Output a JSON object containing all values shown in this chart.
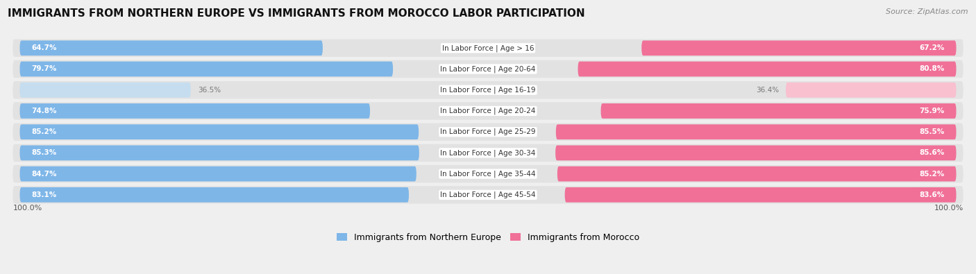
{
  "title": "IMMIGRANTS FROM NORTHERN EUROPE VS IMMIGRANTS FROM MOROCCO LABOR PARTICIPATION",
  "source": "Source: ZipAtlas.com",
  "categories": [
    "In Labor Force | Age > 16",
    "In Labor Force | Age 20-64",
    "In Labor Force | Age 16-19",
    "In Labor Force | Age 20-24",
    "In Labor Force | Age 25-29",
    "In Labor Force | Age 30-34",
    "In Labor Force | Age 35-44",
    "In Labor Force | Age 45-54"
  ],
  "northern_europe_values": [
    64.7,
    79.7,
    36.5,
    74.8,
    85.2,
    85.3,
    84.7,
    83.1
  ],
  "morocco_values": [
    67.2,
    80.8,
    36.4,
    75.9,
    85.5,
    85.6,
    85.2,
    83.6
  ],
  "blue_color": "#7EB6E8",
  "blue_light_color": "#C5DDEF",
  "pink_color": "#F07098",
  "pink_light_color": "#F9C0D0",
  "bg_color": "#EFEFEF",
  "row_bg_color": "#E2E2E2",
  "legend_blue": "Immigrants from Northern Europe",
  "legend_pink": "Immigrants from Morocco",
  "axis_label": "100.0%",
  "bar_height": 0.72,
  "max_val": 100.0,
  "low_threshold": 50.0,
  "title_fontsize": 11,
  "source_fontsize": 8,
  "label_fontsize": 7.5,
  "value_fontsize": 7.5
}
